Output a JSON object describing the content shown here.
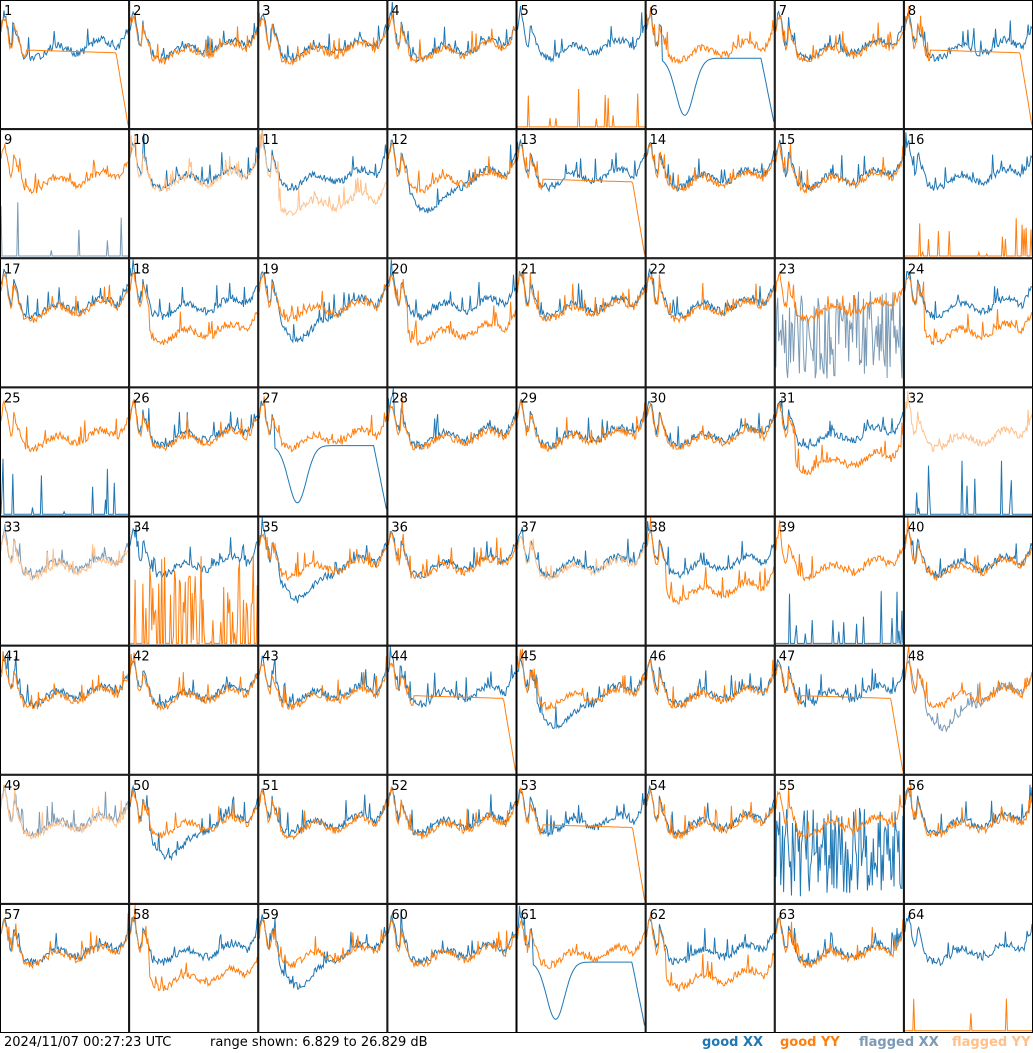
{
  "footer": {
    "timestamp": "2024/11/07 00:27:23 UTC",
    "range": "range shown: 6.829 to 26.829 dB"
  },
  "legend": [
    {
      "label": "good XX",
      "color": "#1f77b4"
    },
    {
      "label": "good YY",
      "color": "#ff7f0e"
    },
    {
      "label": "flagged XX",
      "color": "#7b9ab5"
    },
    {
      "label": "flagged YY",
      "color": "#ffc08a"
    }
  ],
  "chart_data": {
    "type": "line",
    "layout": "8x8 small multiples",
    "ylim": [
      6.829,
      26.829
    ],
    "yunit": "dB",
    "panels": [
      {
        "id": "1",
        "xx": "good",
        "yy": "good",
        "pattern": "yy_drop"
      },
      {
        "id": "2",
        "xx": "good",
        "yy": "good",
        "pattern": "normal"
      },
      {
        "id": "3",
        "xx": "good",
        "yy": "good",
        "pattern": "normal"
      },
      {
        "id": "4",
        "xx": "good",
        "yy": "good",
        "pattern": "normal"
      },
      {
        "id": "5",
        "xx": "good",
        "yy": "good",
        "pattern": "yy_low"
      },
      {
        "id": "6",
        "xx": "good",
        "yy": "good",
        "pattern": "xx_dip"
      },
      {
        "id": "7",
        "xx": "good",
        "yy": "good",
        "pattern": "normal"
      },
      {
        "id": "8",
        "xx": "good",
        "yy": "good",
        "pattern": "yy_drop"
      },
      {
        "id": "9",
        "xx": "flagged",
        "yy": "good",
        "pattern": "xx_low"
      },
      {
        "id": "10",
        "xx": "good",
        "yy": "flagged",
        "pattern": "normal"
      },
      {
        "id": "11",
        "xx": "good",
        "yy": "flagged",
        "pattern": "yy_under"
      },
      {
        "id": "12",
        "xx": "good",
        "yy": "good",
        "pattern": "xx_sag"
      },
      {
        "id": "13",
        "xx": "good",
        "yy": "good",
        "pattern": "yy_drop"
      },
      {
        "id": "14",
        "xx": "good",
        "yy": "good",
        "pattern": "normal"
      },
      {
        "id": "15",
        "xx": "good",
        "yy": "good",
        "pattern": "normal"
      },
      {
        "id": "16",
        "xx": "good",
        "yy": "good",
        "pattern": "yy_low"
      },
      {
        "id": "17",
        "xx": "good",
        "yy": "good",
        "pattern": "normal"
      },
      {
        "id": "18",
        "xx": "good",
        "yy": "good",
        "pattern": "yy_under"
      },
      {
        "id": "19",
        "xx": "good",
        "yy": "good",
        "pattern": "xx_sag"
      },
      {
        "id": "20",
        "xx": "good",
        "yy": "good",
        "pattern": "yy_under"
      },
      {
        "id": "21",
        "xx": "good",
        "yy": "good",
        "pattern": "normal"
      },
      {
        "id": "22",
        "xx": "good",
        "yy": "good",
        "pattern": "normal"
      },
      {
        "id": "23",
        "xx": "flagged",
        "yy": "good",
        "pattern": "xx_noise"
      },
      {
        "id": "24",
        "xx": "good",
        "yy": "good",
        "pattern": "yy_under"
      },
      {
        "id": "25",
        "xx": "good",
        "yy": "good",
        "pattern": "xx_low"
      },
      {
        "id": "26",
        "xx": "good",
        "yy": "good",
        "pattern": "normal"
      },
      {
        "id": "27",
        "xx": "good",
        "yy": "good",
        "pattern": "xx_dip"
      },
      {
        "id": "28",
        "xx": "good",
        "yy": "good",
        "pattern": "normal"
      },
      {
        "id": "29",
        "xx": "good",
        "yy": "good",
        "pattern": "normal"
      },
      {
        "id": "30",
        "xx": "good",
        "yy": "good",
        "pattern": "normal"
      },
      {
        "id": "31",
        "xx": "good",
        "yy": "good",
        "pattern": "yy_under"
      },
      {
        "id": "32",
        "xx": "good",
        "yy": "flagged",
        "pattern": "xx_low"
      },
      {
        "id": "33",
        "xx": "flagged",
        "yy": "flagged",
        "pattern": "normal"
      },
      {
        "id": "34",
        "xx": "good",
        "yy": "good",
        "pattern": "yy_noise"
      },
      {
        "id": "35",
        "xx": "good",
        "yy": "good",
        "pattern": "xx_sag"
      },
      {
        "id": "36",
        "xx": "good",
        "yy": "good",
        "pattern": "normal"
      },
      {
        "id": "37",
        "xx": "good",
        "yy": "flagged",
        "pattern": "normal"
      },
      {
        "id": "38",
        "xx": "good",
        "yy": "good",
        "pattern": "yy_under"
      },
      {
        "id": "39",
        "xx": "good",
        "yy": "good",
        "pattern": "xx_low"
      },
      {
        "id": "40",
        "xx": "good",
        "yy": "good",
        "pattern": "normal"
      },
      {
        "id": "41",
        "xx": "good",
        "yy": "good",
        "pattern": "normal"
      },
      {
        "id": "42",
        "xx": "good",
        "yy": "good",
        "pattern": "normal"
      },
      {
        "id": "43",
        "xx": "good",
        "yy": "good",
        "pattern": "normal"
      },
      {
        "id": "44",
        "xx": "good",
        "yy": "good",
        "pattern": "yy_drop"
      },
      {
        "id": "45",
        "xx": "good",
        "yy": "good",
        "pattern": "xx_sag"
      },
      {
        "id": "46",
        "xx": "good",
        "yy": "good",
        "pattern": "normal"
      },
      {
        "id": "47",
        "xx": "good",
        "yy": "good",
        "pattern": "yy_drop"
      },
      {
        "id": "48",
        "xx": "flagged",
        "yy": "good",
        "pattern": "xx_sag"
      },
      {
        "id": "49",
        "xx": "flagged",
        "yy": "flagged",
        "pattern": "normal"
      },
      {
        "id": "50",
        "xx": "good",
        "yy": "good",
        "pattern": "xx_sag"
      },
      {
        "id": "51",
        "xx": "good",
        "yy": "good",
        "pattern": "normal"
      },
      {
        "id": "52",
        "xx": "good",
        "yy": "good",
        "pattern": "normal"
      },
      {
        "id": "53",
        "xx": "good",
        "yy": "good",
        "pattern": "yy_drop"
      },
      {
        "id": "54",
        "xx": "good",
        "yy": "good",
        "pattern": "normal"
      },
      {
        "id": "55",
        "xx": "good",
        "yy": "good",
        "pattern": "xx_noise"
      },
      {
        "id": "56",
        "xx": "good",
        "yy": "good",
        "pattern": "normal"
      },
      {
        "id": "57",
        "xx": "good",
        "yy": "good",
        "pattern": "normal"
      },
      {
        "id": "58",
        "xx": "good",
        "yy": "good",
        "pattern": "yy_under"
      },
      {
        "id": "59",
        "xx": "good",
        "yy": "good",
        "pattern": "xx_sag"
      },
      {
        "id": "60",
        "xx": "good",
        "yy": "good",
        "pattern": "normal"
      },
      {
        "id": "61",
        "xx": "good",
        "yy": "good",
        "pattern": "xx_dip"
      },
      {
        "id": "62",
        "xx": "good",
        "yy": "good",
        "pattern": "yy_under"
      },
      {
        "id": "63",
        "xx": "good",
        "yy": "good",
        "pattern": "normal"
      },
      {
        "id": "64",
        "xx": "good",
        "yy": "good",
        "pattern": "yy_low"
      }
    ]
  }
}
